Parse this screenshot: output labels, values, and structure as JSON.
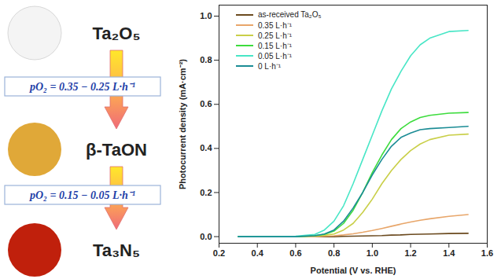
{
  "chart_data": {
    "type": "line",
    "x_label": "Potential (V vs. RHE)",
    "y_label": "Photocurrent density (mA·cm⁻²)",
    "x": [
      0.3,
      0.4,
      0.5,
      0.6,
      0.7,
      0.75,
      0.8,
      0.85,
      0.9,
      0.95,
      1.0,
      1.05,
      1.1,
      1.15,
      1.2,
      1.25,
      1.3,
      1.4,
      1.5
    ],
    "series": [
      {
        "name": "as-received Ta₂O₅",
        "color": "#6b4a1f",
        "values": [
          0,
          0,
          0,
          0,
          0,
          0,
          0,
          0.001,
          0.002,
          0.003,
          0.004,
          0.005,
          0.007,
          0.008,
          0.01,
          0.011,
          0.012,
          0.014,
          0.015
        ]
      },
      {
        "name": "0.35 L·h⁻¹",
        "color": "#e8a66a",
        "values": [
          0,
          0,
          0,
          0,
          0,
          0.002,
          0.004,
          0.008,
          0.013,
          0.02,
          0.028,
          0.037,
          0.047,
          0.057,
          0.066,
          0.074,
          0.081,
          0.092,
          0.1
        ]
      },
      {
        "name": "0.25 L·h⁻¹",
        "color": "#c9cf48",
        "values": [
          0,
          0,
          0,
          0,
          0.003,
          0.006,
          0.012,
          0.03,
          0.06,
          0.11,
          0.17,
          0.24,
          0.3,
          0.35,
          0.39,
          0.42,
          0.44,
          0.46,
          0.465
        ]
      },
      {
        "name": "0.15 L·h⁻¹",
        "color": "#3ddc3d",
        "values": [
          0,
          0,
          0,
          0,
          0.004,
          0.01,
          0.025,
          0.06,
          0.12,
          0.2,
          0.29,
          0.37,
          0.44,
          0.49,
          0.52,
          0.54,
          0.55,
          0.56,
          0.563
        ]
      },
      {
        "name": "0.05 L·h⁻¹",
        "color": "#48e6c6",
        "values": [
          0,
          0,
          0,
          0.002,
          0.01,
          0.03,
          0.07,
          0.14,
          0.24,
          0.35,
          0.46,
          0.57,
          0.67,
          0.75,
          0.82,
          0.87,
          0.9,
          0.93,
          0.935
        ]
      },
      {
        "name": "0 L·h⁻¹",
        "color": "#1b8c95",
        "values": [
          0,
          0,
          0,
          0,
          0.005,
          0.012,
          0.03,
          0.07,
          0.13,
          0.2,
          0.28,
          0.35,
          0.41,
          0.45,
          0.47,
          0.485,
          0.49,
          0.495,
          0.5
        ]
      }
    ],
    "xlim": [
      0.2,
      1.6
    ],
    "xticks": [
      0.2,
      0.4,
      0.6,
      0.8,
      {
        "value": 1.0,
        "label": "1.0"
      },
      1.2,
      1.4,
      1.6
    ],
    "ylim": [
      -0.03,
      1.05
    ],
    "yticks": [
      {
        "value": 0,
        "label": "0.0"
      },
      0.2,
      0.4,
      0.6,
      0.8,
      {
        "value": 1.0,
        "label": "1.0"
      }
    ],
    "legend": "top-left",
    "grid": false
  },
  "diagram": {
    "steps": [
      {
        "label": "Ta₂O₅",
        "color": "#f4f4f4"
      },
      {
        "label": "β-TaON",
        "color": "#e0a838"
      },
      {
        "label": "Ta₃N₅",
        "color": "#c0200c"
      }
    ],
    "conditions": [
      "pO₂ = 0.35 − 0.25 L·h⁻¹",
      "pO₂ = 0.15 − 0.05 L·h⁻¹"
    ]
  }
}
